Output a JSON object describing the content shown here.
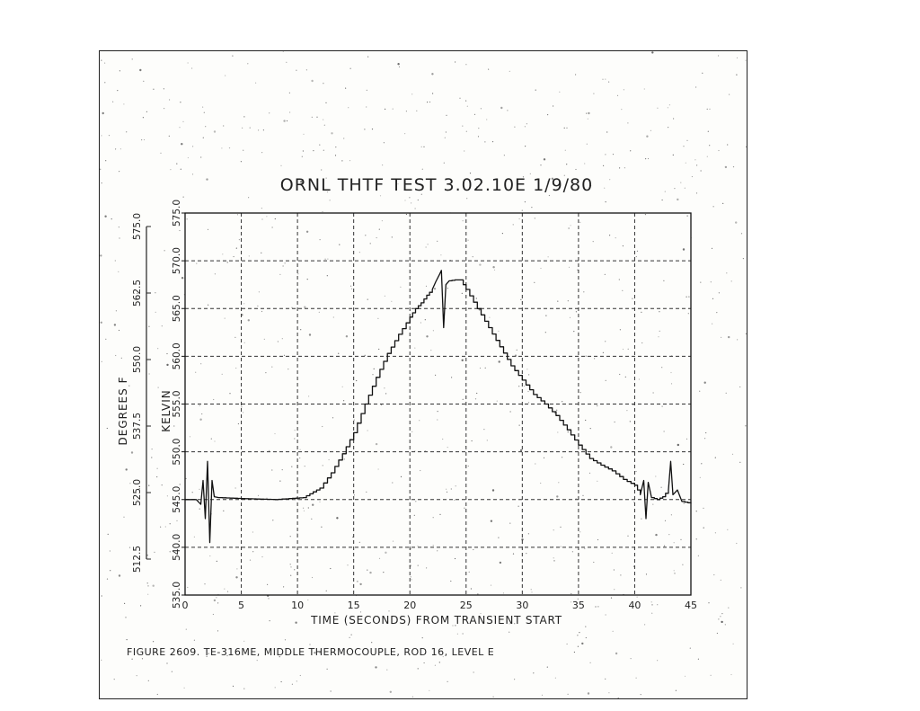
{
  "chart_data": {
    "type": "line",
    "title": "ORNL THTF TEST 3.02.10E 1/9/80",
    "xlabel": "TIME (SECONDS) FROM TRANSIENT START",
    "ylabel_kelvin": "KELVIN",
    "ylabel_fahrenheit": "DEGREES F",
    "caption": "FIGURE 2609. TE-316ME, MIDDLE THERMOCOUPLE, ROD 16, LEVEL E",
    "xlim": [
      0,
      45
    ],
    "ylim": [
      535.0,
      575.0
    ],
    "x_ticks": [
      "0",
      "5",
      "10",
      "15",
      "20",
      "25",
      "30",
      "35",
      "40",
      "45"
    ],
    "y_ticks_kelvin": [
      "535.0",
      "540.0",
      "545.0",
      "550.0",
      "555.0",
      "560.0",
      "565.0",
      "570.0",
      "575.0"
    ],
    "y_ticks_fahrenheit": [
      "512.5",
      "525.0",
      "537.5",
      "550.0",
      "562.5",
      "575.0"
    ],
    "grid": true,
    "series": [
      {
        "x": [
          0,
          1.0,
          1.4,
          1.6,
          1.8,
          2.0,
          2.2,
          2.4,
          2.6,
          3,
          5,
          8,
          10.5,
          12,
          13,
          14,
          15,
          16,
          17,
          18,
          19,
          20,
          20.5,
          21,
          21.5,
          22,
          22.3,
          22.6,
          22.8,
          23.0,
          23.2,
          23.5,
          24,
          24.5,
          25,
          26,
          27,
          28,
          29,
          30,
          31,
          32,
          33,
          34,
          35,
          36,
          37,
          38,
          39,
          40,
          40.5,
          40.8,
          41.0,
          41.2,
          41.5,
          42,
          42.5,
          43.0,
          43.2,
          43.4,
          43.8,
          44.2,
          45
        ],
        "y": [
          545.0,
          545.0,
          544.5,
          547.0,
          543.0,
          549.0,
          540.5,
          547.0,
          545.3,
          545.2,
          545.1,
          545.0,
          545.2,
          546.2,
          547.8,
          549.8,
          552.0,
          555.0,
          557.8,
          560.3,
          562.3,
          564.1,
          565.0,
          565.6,
          566.4,
          567.0,
          567.8,
          568.5,
          569.0,
          563.0,
          567.5,
          567.9,
          568.0,
          568.0,
          567.0,
          565.0,
          563.0,
          561.0,
          559.0,
          557.5,
          556.0,
          555.0,
          553.8,
          552.3,
          550.7,
          549.3,
          548.6,
          548.0,
          547.1,
          546.5,
          545.5,
          547.0,
          543.0,
          546.8,
          545.2,
          545.0,
          545.3,
          546.0,
          549.0,
          545.5,
          546.0,
          544.8,
          544.6
        ]
      }
    ]
  }
}
